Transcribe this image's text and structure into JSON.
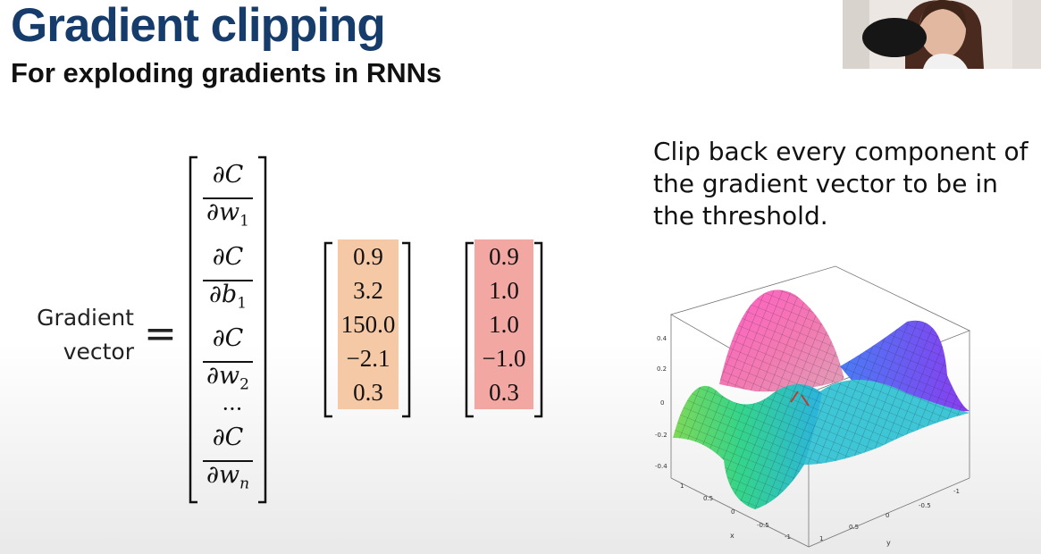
{
  "slide": {
    "title": "Gradient clipping",
    "subtitle": "For exploding gradients in RNNs"
  },
  "equation": {
    "lhs_line1": "Gradient",
    "lhs_line2": "vector",
    "equals": "=",
    "partials": [
      {
        "num": "∂C",
        "den": "∂w",
        "sub": "1"
      },
      {
        "num": "∂C",
        "den": "∂b",
        "sub": "1"
      },
      {
        "num": "∂C",
        "den": "∂w",
        "sub": "2"
      },
      {
        "num": "∂C",
        "den": "∂w",
        "sub": "n"
      }
    ],
    "ellipsis": "···",
    "original_values": [
      "0.9",
      "3.2",
      "150.0",
      "−2.1",
      "0.3"
    ],
    "clipped_values": [
      "0.9",
      "1.0",
      "1.0",
      "−1.0",
      "0.3"
    ],
    "original_color": "#f6c9a6",
    "clipped_color": "#f2a7a3"
  },
  "description": "Clip back every component of the gradient vector to be in the threshold.",
  "surface_plot": {
    "z_ticks": [
      "0.4",
      "0.2",
      "0",
      "-0.2",
      "-0.4"
    ],
    "x_ticks": [
      "1",
      "0.5",
      "0",
      "-0.5",
      "-1"
    ],
    "y_ticks": [
      "-1",
      "-0.5",
      "0",
      "0.5",
      "1"
    ],
    "x_label": "x",
    "y_label": "y"
  }
}
